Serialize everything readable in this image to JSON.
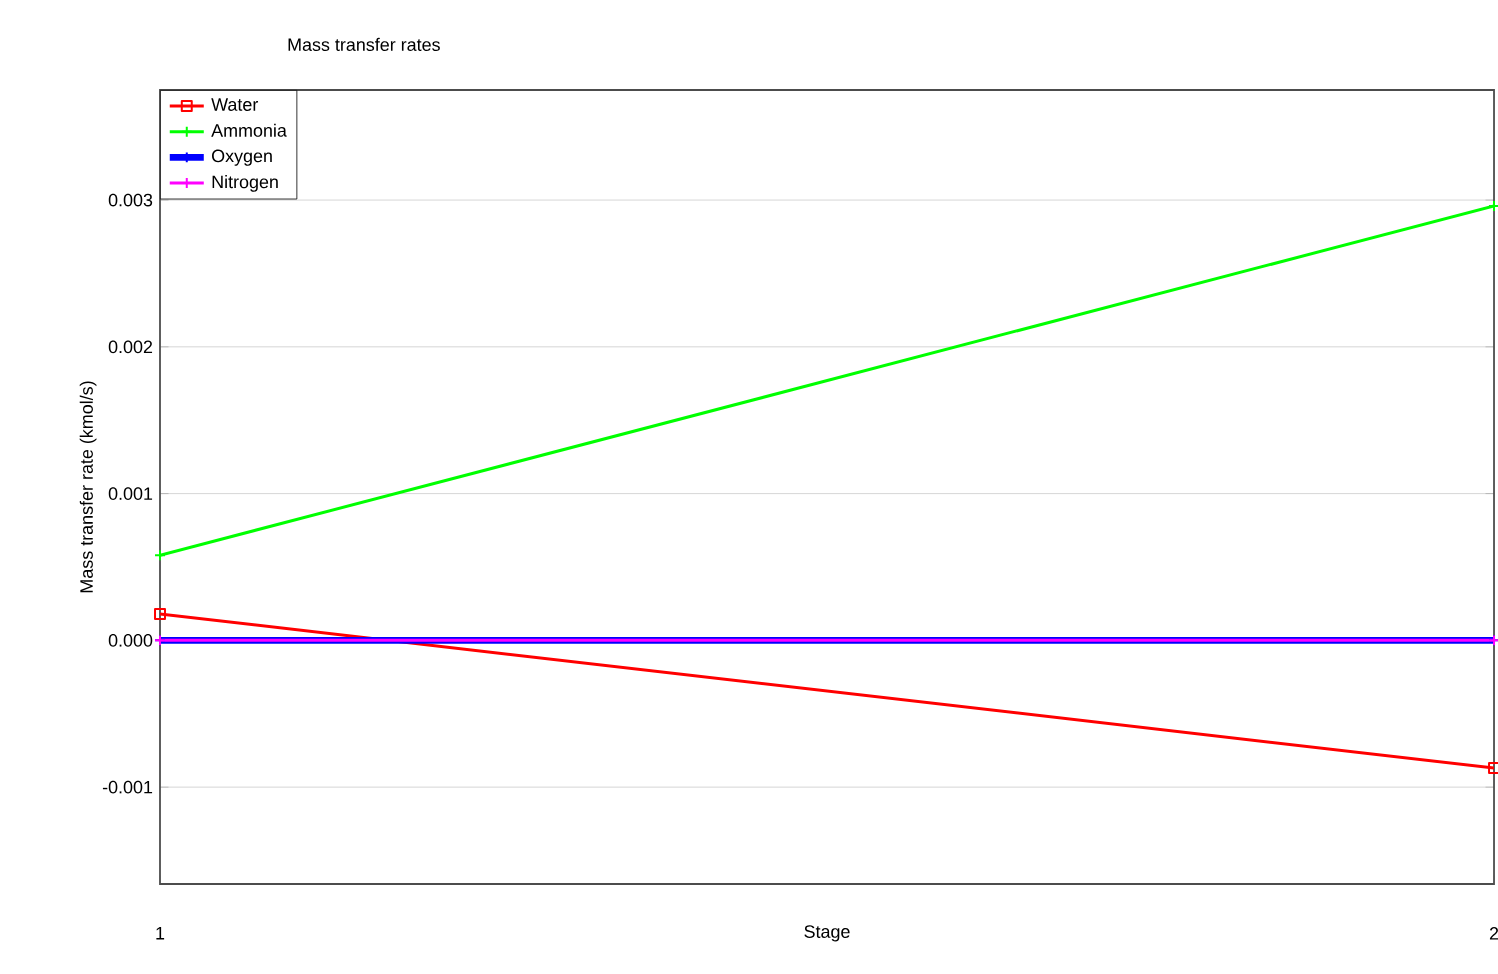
{
  "chart_data": {
    "type": "line",
    "title": "Mass transfer rates",
    "xlabel": "Stage",
    "ylabel": "Mass transfer rate (kmol/s)",
    "x": [
      1,
      2
    ],
    "xlim": [
      1,
      2
    ],
    "xticks": [
      1,
      2
    ],
    "ylim": [
      -0.00166,
      0.00375
    ],
    "yticks": [
      {
        "value": -0.001,
        "label": "-0.001"
      },
      {
        "value": 0,
        "label": "0.000"
      },
      {
        "value": 0.001,
        "label": "0.001"
      },
      {
        "value": 0.002,
        "label": "0.002"
      },
      {
        "value": 0.003,
        "label": "0.003"
      }
    ],
    "grid": "y",
    "legend": "top left",
    "series": [
      {
        "name": "Water",
        "color": "#ff0000",
        "marker": "square",
        "values": [
          0.00018,
          -0.00087
        ]
      },
      {
        "name": "Ammonia",
        "color": "#00ff00",
        "marker": "cross",
        "values": [
          0.00058,
          0.00296
        ]
      },
      {
        "name": "Oxygen",
        "color": "#0000ff",
        "marker": "cross",
        "values": [
          0,
          0
        ]
      },
      {
        "name": "Nitrogen",
        "color": "#ff00ff",
        "marker": "cross",
        "values": [
          0,
          0
        ]
      }
    ]
  }
}
